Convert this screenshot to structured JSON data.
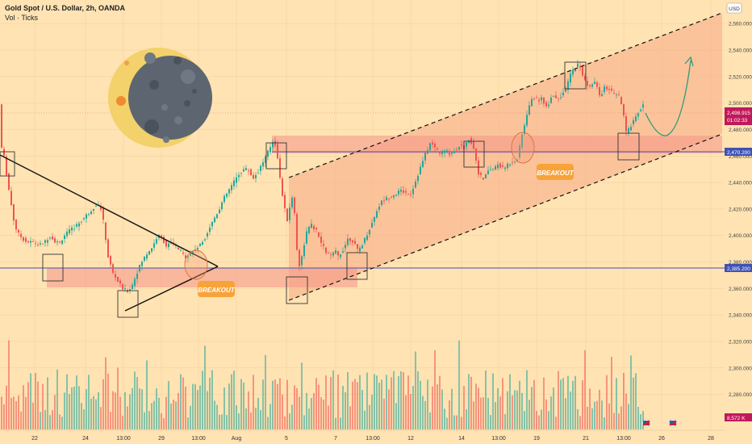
{
  "header": {
    "symbol_line": "Gold Spot / U.S. Dollar, 2h, OANDA",
    "vol_line": "Vol · Ticks"
  },
  "currency_badge": "USD",
  "colors": {
    "background": "#ffe3b3",
    "up": "#26a69a",
    "down": "#ef5350",
    "zone": "#f5a08a",
    "blue_line": "#3f51b5",
    "price_tag": "#c2185b",
    "breakout_label": "#f7a33a",
    "moon_dark": "#5d6670",
    "moon_light": "#f3d16b",
    "curve": "#2e9a7a"
  },
  "price_axis": {
    "ticks": [
      "2,560.000",
      "2,540.000",
      "2,520.000",
      "2,500.000",
      "2,480.000",
      "2,460.000",
      "2,440.000",
      "2,420.000",
      "2,400.000",
      "2,380.000",
      "2,360.000",
      "2,340.000",
      "2,320.000",
      "2,300.000",
      "2,280.000"
    ],
    "current_price": "2,498.915",
    "countdown": "01:02:33",
    "level_upper": "2,470.200",
    "level_lower": "2,385.200",
    "volume_tag": "8.572 K"
  },
  "time_axis": {
    "labels": [
      "22",
      "24",
      "13:00",
      "29",
      "13:00",
      "Aug",
      "5",
      "7",
      "13:00",
      "12",
      "14",
      "13:00",
      "19",
      "21",
      "13:00",
      "26",
      "28"
    ]
  },
  "annotations": {
    "breakout_left": "BREAKOUT",
    "breakout_right": "BREAKOUT"
  },
  "chart_data": {
    "type": "candlestick",
    "title": "Gold Spot / U.S. Dollar, 2h, OANDA",
    "price_range": [
      2270,
      2572
    ],
    "key_levels": [
      2470.2,
      2385.2
    ],
    "current_price": 2498.915,
    "price_path": [
      [
        0,
        2472
      ],
      [
        6,
        2458
      ],
      [
        10,
        2440
      ],
      [
        14,
        2425
      ],
      [
        18,
        2410
      ],
      [
        22,
        2402
      ],
      [
        28,
        2398
      ],
      [
        34,
        2395
      ],
      [
        40,
        2395
      ],
      [
        50,
        2393
      ],
      [
        56,
        2395
      ],
      [
        62,
        2400
      ],
      [
        68,
        2396
      ],
      [
        74,
        2394
      ],
      [
        80,
        2400
      ],
      [
        88,
        2404
      ],
      [
        96,
        2408
      ],
      [
        104,
        2413
      ],
      [
        112,
        2418
      ],
      [
        120,
        2424
      ],
      [
        126,
        2420
      ],
      [
        130,
        2405
      ],
      [
        134,
        2385
      ],
      [
        140,
        2372
      ],
      [
        146,
        2366
      ],
      [
        152,
        2360
      ],
      [
        158,
        2358
      ],
      [
        164,
        2362
      ],
      [
        170,
        2372
      ],
      [
        176,
        2380
      ],
      [
        182,
        2386
      ],
      [
        190,
        2392
      ],
      [
        196,
        2400
      ],
      [
        202,
        2398
      ],
      [
        206,
        2392
      ],
      [
        212,
        2394
      ],
      [
        218,
        2392
      ],
      [
        224,
        2388
      ],
      [
        230,
        2384
      ],
      [
        236,
        2386
      ],
      [
        242,
        2390
      ],
      [
        248,
        2392
      ],
      [
        254,
        2398
      ],
      [
        260,
        2406
      ],
      [
        266,
        2413
      ],
      [
        272,
        2420
      ],
      [
        278,
        2428
      ],
      [
        284,
        2434
      ],
      [
        290,
        2440
      ],
      [
        296,
        2446
      ],
      [
        302,
        2450
      ],
      [
        308,
        2450
      ],
      [
        314,
        2443
      ],
      [
        320,
        2448
      ],
      [
        326,
        2455
      ],
      [
        332,
        2462
      ],
      [
        336,
        2468
      ],
      [
        340,
        2473
      ],
      [
        344,
        2462
      ],
      [
        348,
        2440
      ],
      [
        352,
        2425
      ],
      [
        356,
        2410
      ],
      [
        362,
        2430
      ],
      [
        366,
        2415
      ],
      [
        370,
        2375
      ],
      [
        374,
        2382
      ],
      [
        380,
        2402
      ],
      [
        386,
        2408
      ],
      [
        392,
        2404
      ],
      [
        398,
        2395
      ],
      [
        404,
        2388
      ],
      [
        410,
        2384
      ],
      [
        416,
        2388
      ],
      [
        420,
        2384
      ],
      [
        426,
        2390
      ],
      [
        432,
        2398
      ],
      [
        438,
        2396
      ],
      [
        444,
        2388
      ],
      [
        450,
        2394
      ],
      [
        456,
        2402
      ],
      [
        462,
        2410
      ],
      [
        468,
        2420
      ],
      [
        474,
        2426
      ],
      [
        480,
        2428
      ],
      [
        486,
        2430
      ],
      [
        492,
        2432
      ],
      [
        498,
        2434
      ],
      [
        504,
        2432
      ],
      [
        510,
        2432
      ],
      [
        516,
        2442
      ],
      [
        522,
        2452
      ],
      [
        528,
        2462
      ],
      [
        534,
        2470
      ],
      [
        540,
        2466
      ],
      [
        546,
        2462
      ],
      [
        552,
        2464
      ],
      [
        558,
        2462
      ],
      [
        564,
        2464
      ],
      [
        570,
        2468
      ],
      [
        576,
        2466
      ],
      [
        582,
        2474
      ],
      [
        588,
        2465
      ],
      [
        594,
        2446
      ],
      [
        600,
        2442
      ],
      [
        606,
        2450
      ],
      [
        612,
        2450
      ],
      [
        618,
        2454
      ],
      [
        624,
        2450
      ],
      [
        630,
        2454
      ],
      [
        636,
        2456
      ],
      [
        642,
        2458
      ],
      [
        648,
        2478
      ],
      [
        654,
        2492
      ],
      [
        660,
        2505
      ],
      [
        666,
        2502
      ],
      [
        672,
        2504
      ],
      [
        678,
        2496
      ],
      [
        684,
        2506
      ],
      [
        690,
        2504
      ],
      [
        696,
        2506
      ],
      [
        702,
        2510
      ],
      [
        706,
        2520
      ],
      [
        712,
        2526
      ],
      [
        718,
        2530
      ],
      [
        722,
        2522
      ],
      [
        726,
        2516
      ],
      [
        732,
        2512
      ],
      [
        738,
        2516
      ],
      [
        744,
        2505
      ],
      [
        750,
        2512
      ],
      [
        756,
        2510
      ],
      [
        762,
        2506
      ],
      [
        768,
        2505
      ],
      [
        772,
        2496
      ],
      [
        776,
        2478
      ],
      [
        780,
        2480
      ],
      [
        786,
        2488
      ],
      [
        792,
        2494
      ],
      [
        798,
        2499
      ]
    ],
    "volume_range": [
      0,
      14
    ]
  }
}
